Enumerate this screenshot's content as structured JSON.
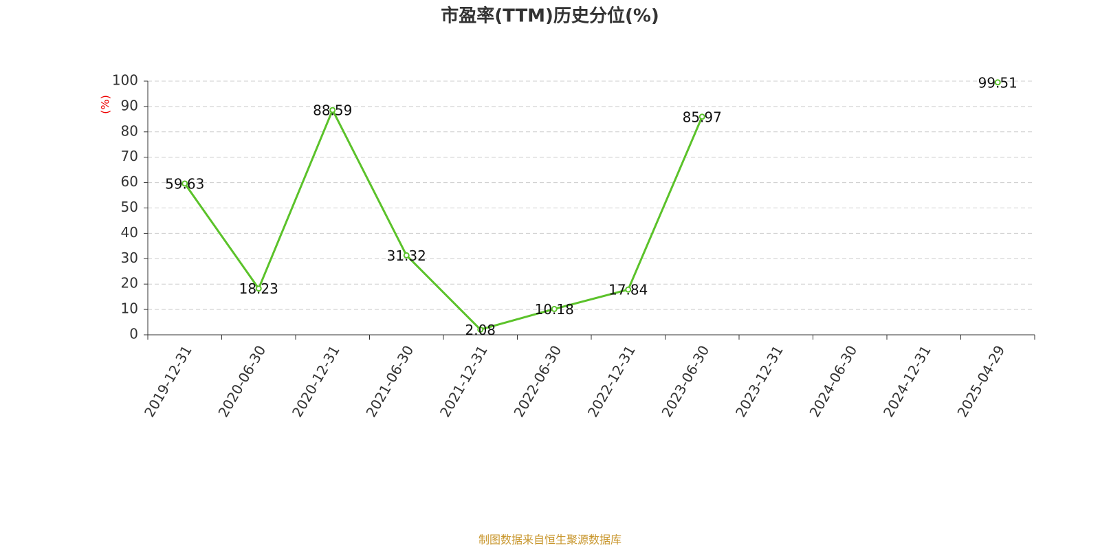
{
  "chart_data": {
    "type": "line",
    "title": "市盈率(TTM)历史分位(%)",
    "y_label": "(%)",
    "categories": [
      "2019-12-31",
      "2020-06-30",
      "2020-12-31",
      "2021-06-30",
      "2021-12-31",
      "2022-06-30",
      "2022-12-31",
      "2023-06-30",
      "2023-12-31",
      "2024-06-30",
      "2024-12-31",
      "2025-04-29"
    ],
    "series": [
      {
        "name": "市盈率(TTM)历史分位",
        "color": "#5bc22a",
        "values": [
          59.63,
          18.23,
          88.59,
          31.32,
          2.08,
          10.18,
          17.84,
          85.97,
          null,
          null,
          null,
          99.51
        ]
      }
    ],
    "ylim": [
      0,
      100
    ],
    "yticks": [
      0,
      10,
      20,
      30,
      40,
      50,
      60,
      70,
      80,
      90,
      100
    ],
    "grid": true,
    "source": "制图数据来自恒生聚源数据库"
  }
}
